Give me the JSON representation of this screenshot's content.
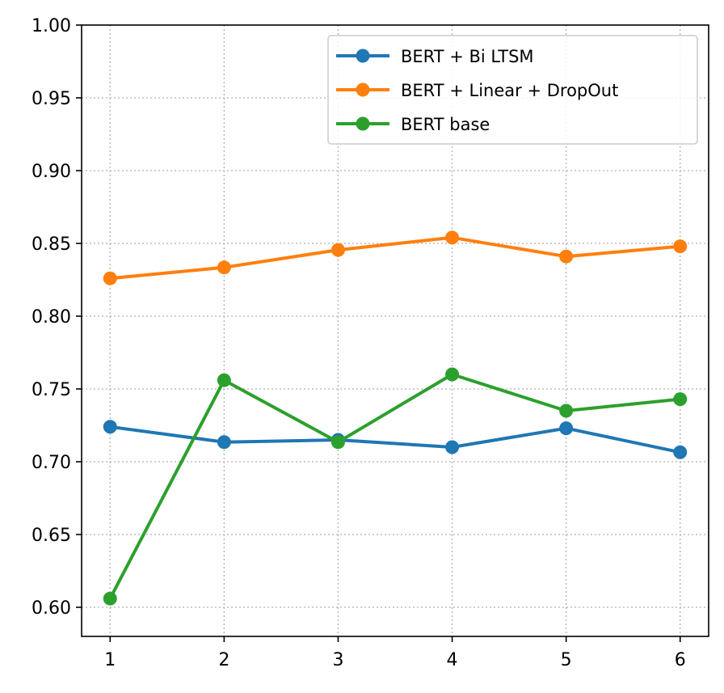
{
  "chart_data": {
    "type": "line",
    "title": "",
    "xlabel": "",
    "ylabel": "",
    "x": [
      1,
      2,
      3,
      4,
      5,
      6
    ],
    "xlim": [
      0.75,
      6.25
    ],
    "ylim": [
      0.58,
      1.0
    ],
    "x_ticks": [
      "1",
      "2",
      "3",
      "4",
      "5",
      "6"
    ],
    "y_ticks": [
      "0.60",
      "0.65",
      "0.70",
      "0.75",
      "0.80",
      "0.85",
      "0.90",
      "0.95",
      "1.00"
    ],
    "grid": true,
    "legend_position": "top-right",
    "series": [
      {
        "name": "BERT + Bi LTSM",
        "color": "#1f77b4",
        "values": [
          0.724,
          0.7135,
          0.715,
          0.71,
          0.723,
          0.7065
        ]
      },
      {
        "name": "BERT + Linear + DropOut",
        "color": "#ff7f0e",
        "values": [
          0.826,
          0.8335,
          0.8455,
          0.854,
          0.841,
          0.848
        ]
      },
      {
        "name": "BERT base",
        "color": "#2ca02c",
        "values": [
          0.606,
          0.756,
          0.7135,
          0.76,
          0.735,
          0.743
        ]
      }
    ]
  }
}
